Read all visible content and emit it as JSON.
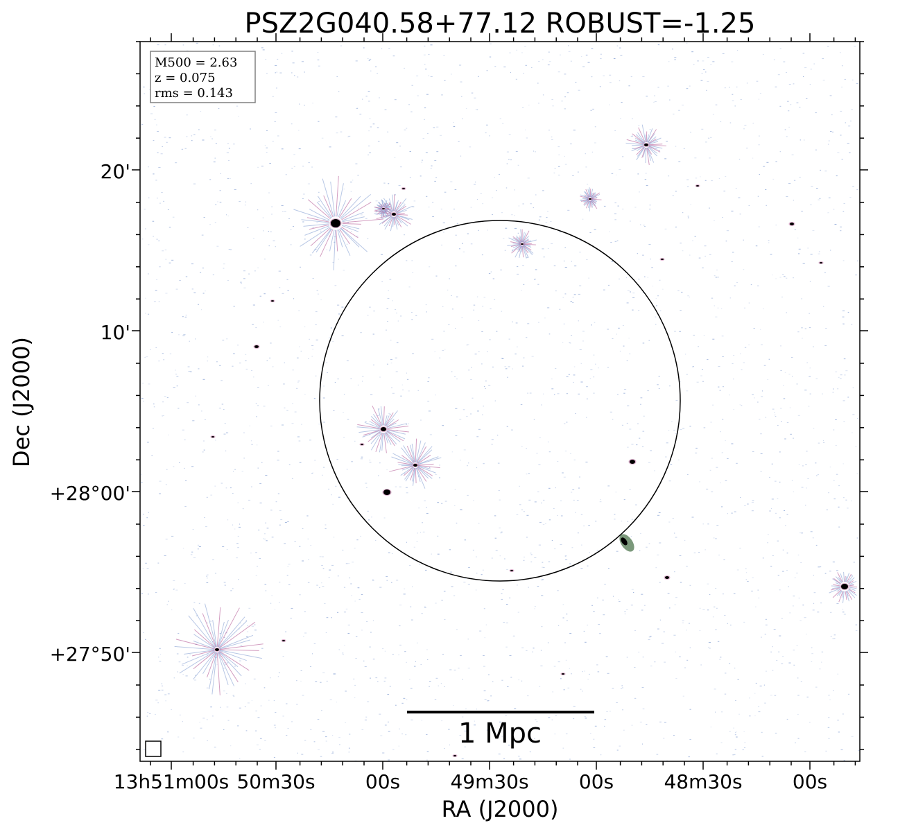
{
  "chart_data": {
    "type": "image",
    "title": "PSZ2G040.58+77.12 ROBUST=-1.25",
    "xlabel": "RA (J2000)",
    "ylabel": "Dec (J2000)",
    "x_tick_labels": [
      "13h51m00s",
      "50m30s",
      "00s",
      "49m30s",
      "00s",
      "48m30s",
      "00s"
    ],
    "y_tick_labels": [
      "20'",
      "10'",
      "+28°00'",
      "+27°50'"
    ],
    "info_box": [
      "M500 = 2.63",
      "z = 0.075",
      "rms = 0.143"
    ],
    "scale_bar_label": "1 Mpc",
    "colors": {
      "background": "#ffffff",
      "noise": "#7f9bd0",
      "source_halo": "#b0508f",
      "source_core": "#000000",
      "circle": "#000000"
    },
    "circle_shown": true,
    "beam_shown": true,
    "grid": false
  }
}
